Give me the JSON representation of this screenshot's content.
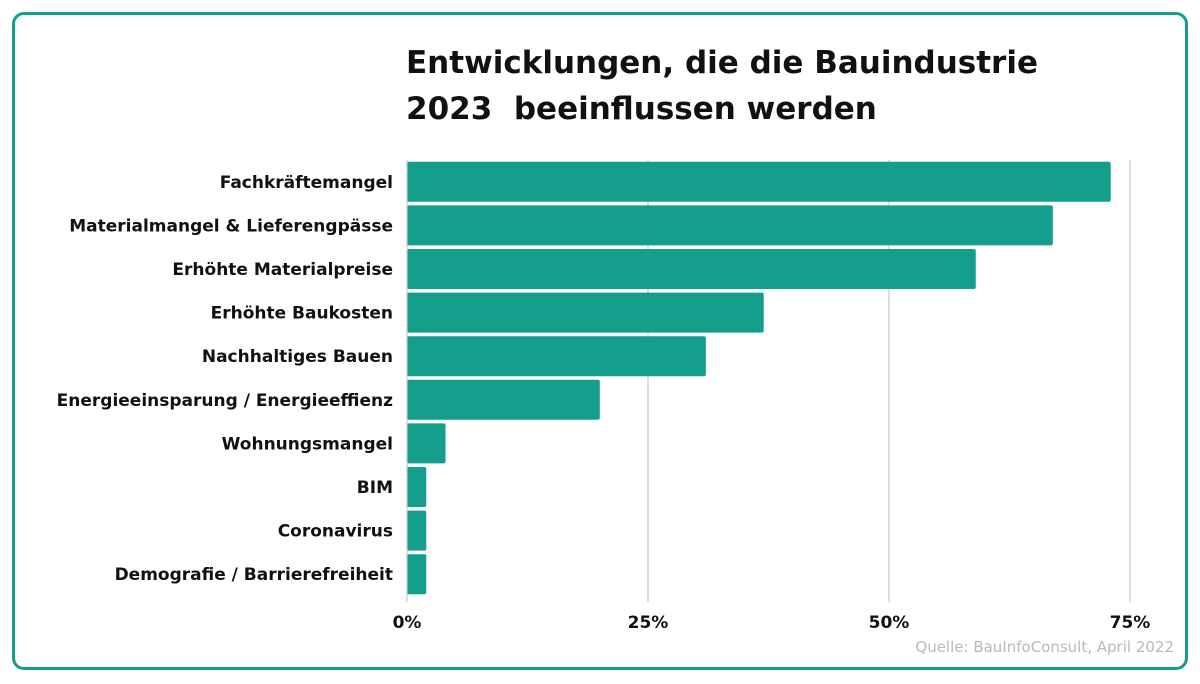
{
  "title_lines": [
    "Entwicklungen, die die Bauindustrie",
    "2023  beeinflussen werden"
  ],
  "source": "Quelle: BauInfoConsult, April 2022",
  "colors": {
    "bar": "#149e8c",
    "frame": "#149e8c",
    "grid": "#c8c8c8",
    "text": "#111111",
    "source": "#b9b9b9"
  },
  "chart_data": {
    "type": "bar",
    "orientation": "horizontal",
    "title": "Entwicklungen, die die Bauindustrie 2023  beeinflussen werden",
    "categories": [
      "Fachkräftemangel",
      "Materialmangel & Lieferengpässe",
      "Erhöhte Materialpreise",
      "Erhöhte Baukosten",
      "Nachhaltiges Bauen",
      "Energieeinsparung / Energieeffienz",
      "Wohnungsmangel",
      "BIM",
      "Coronavirus",
      "Demografie / Barrierefreiheit"
    ],
    "values": [
      73,
      67,
      59,
      37,
      31,
      20,
      4,
      2,
      2,
      2
    ],
    "xlim": [
      0,
      75
    ],
    "ticks": [
      0,
      25,
      50,
      75
    ],
    "tick_labels": [
      "0%",
      "25%",
      "50%",
      "75%"
    ],
    "xlabel": "",
    "ylabel": "",
    "grid": true
  }
}
